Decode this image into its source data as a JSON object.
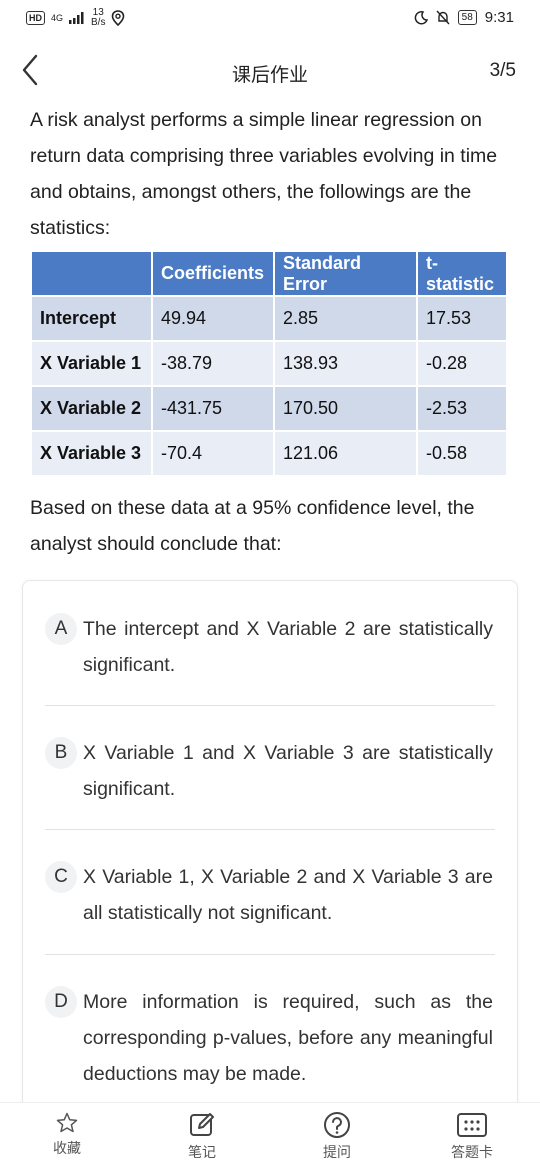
{
  "status_bar": {
    "hd": "HD",
    "network": "4G",
    "speed_value": "13",
    "speed_unit": "B/s",
    "battery": "58",
    "time": "9:31"
  },
  "nav": {
    "title": "课后作业",
    "counter": "3/5"
  },
  "question": {
    "intro": "A risk analyst performs a simple linear regression on return data comprising three variables evolving in time and obtains, amongst others, the followings are the statistics:",
    "prompt": "Based on these data at a 95% confidence level, the analyst should conclude that:"
  },
  "table": {
    "headers": [
      "",
      "Coefficients",
      "Standard Error",
      "t-statistic"
    ],
    "rows": [
      [
        "Intercept",
        "49.94",
        "2.85",
        "17.53"
      ],
      [
        "X Variable 1",
        "-38.79",
        "138.93",
        "-0.28"
      ],
      [
        "X Variable 2",
        "-431.75",
        "170.50",
        "-2.53"
      ],
      [
        "X Variable 3",
        "-70.4",
        "121.06",
        "-0.58"
      ]
    ]
  },
  "options": [
    {
      "letter": "A",
      "text": "The intercept and X Variable 2 are statistically significant."
    },
    {
      "letter": "B",
      "text": "X Variable 1 and X Variable 3 are statistically significant."
    },
    {
      "letter": "C",
      "text": "X Variable 1, X Variable 2 and X Variable 3 are all statistically not significant."
    },
    {
      "letter": "D",
      "text": "More information is required, such as the corresponding p-values, before any meaningful deductions may be made."
    }
  ],
  "tabbar": [
    {
      "label": "收藏",
      "icon": "star-icon"
    },
    {
      "label": "笔记",
      "icon": "note-edit-icon"
    },
    {
      "label": "提问",
      "icon": "question-icon"
    },
    {
      "label": "答题卡",
      "icon": "answer-card-icon"
    }
  ],
  "colors": {
    "table_header": "#4a7bc4",
    "table_row_dark": "#cfd9ea",
    "table_row_light": "#e8edf6"
  }
}
